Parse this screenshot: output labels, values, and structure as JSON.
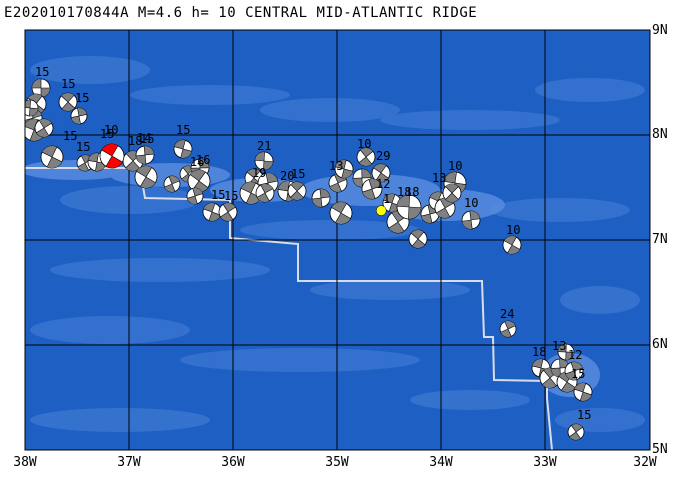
{
  "title": "E202010170844A M=4.6 h= 10 CENTRAL MID-ATLANTIC RIDGE",
  "lat_labels": [
    "9N",
    "8N",
    "7N",
    "6N",
    "5N"
  ],
  "lon_labels": [
    "38W",
    "37W",
    "36W",
    "35W",
    "34W",
    "33W",
    "32W"
  ],
  "colors": {
    "ocean_deep": "#1e5fc4",
    "ocean_mid": "#3c78d2",
    "ridge": "#5a8ee0",
    "grid": "#000000",
    "plate_boundary": "#d8dce8",
    "event_mechanism": "#ff0000",
    "event_epicenter": "#ffff00",
    "historic_mechanism": "#808080"
  },
  "event": {
    "lon": -34.58,
    "lat": 7.28
  },
  "historic_depth_labels": [
    "15",
    "15",
    "15",
    "15",
    "15",
    "15",
    "18",
    "15",
    "10",
    "14",
    "15",
    "16",
    "16",
    "15",
    "15",
    "21",
    "19",
    "20",
    "15",
    "13",
    "10",
    "29",
    "12",
    "18",
    "18",
    "10",
    "13",
    "10",
    "10",
    "24",
    "18",
    "13",
    "15",
    "15",
    "12",
    "1"
  ]
}
